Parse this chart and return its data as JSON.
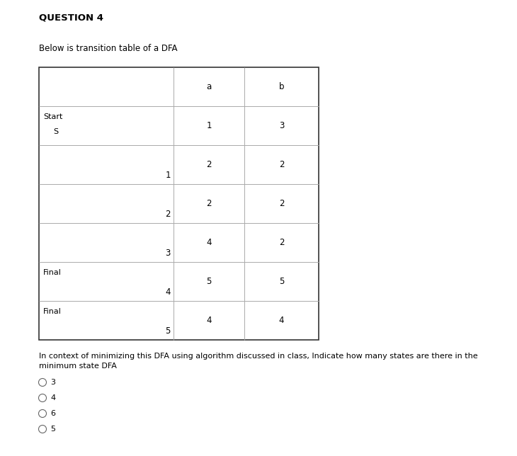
{
  "title": "QUESTION 4",
  "subtitle": "Below is transition table of a DFA",
  "table": {
    "rows": [
      {
        "label_top": "Start",
        "label_bottom": "S",
        "state": "",
        "a": "1",
        "b": "3"
      },
      {
        "label_top": "",
        "label_bottom": "",
        "state": "1",
        "a": "2",
        "b": "2"
      },
      {
        "label_top": "",
        "label_bottom": "",
        "state": "2",
        "a": "2",
        "b": "2"
      },
      {
        "label_top": "",
        "label_bottom": "",
        "state": "3",
        "a": "4",
        "b": "2"
      },
      {
        "label_top": "Final",
        "label_bottom": "",
        "state": "4",
        "a": "5",
        "b": "5"
      },
      {
        "label_top": "Final",
        "label_bottom": "",
        "state": "5",
        "a": "4",
        "b": "4"
      }
    ]
  },
  "question_text": "In context of minimizing this DFA using algorithm discussed in class, Indicate how many states are there in the\nminimum state DFA",
  "options": [
    "3",
    "4",
    "6",
    "5"
  ],
  "bg_color": "#ffffff",
  "text_color": "#000000",
  "table_border_color": "#333333",
  "table_line_color": "#aaaaaa",
  "title_fontsize": 9.5,
  "subtitle_fontsize": 8.5,
  "table_fontsize": 8.5,
  "question_fontsize": 8.0,
  "options_fontsize": 8.0
}
